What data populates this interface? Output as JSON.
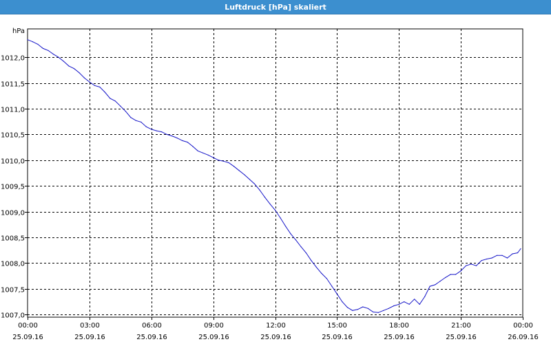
{
  "window": {
    "title": "Luftdruck [hPa] skaliert"
  },
  "colors": {
    "title_bar": "#3c8fcf",
    "line": "#1414c8",
    "grid": "#000000"
  },
  "chart_data": {
    "type": "line",
    "title": "Luftdruck [hPa] skaliert",
    "unit_label": "hPa",
    "xlabel": "",
    "ylabel": "",
    "grid": true,
    "xlim": [
      0,
      24
    ],
    "ylim": [
      1006.95,
      1012.55
    ],
    "y_ticks": [
      {
        "v": 1007.0,
        "label": "1007,0"
      },
      {
        "v": 1007.5,
        "label": "1007,5"
      },
      {
        "v": 1008.0,
        "label": "1008,0"
      },
      {
        "v": 1008.5,
        "label": "1008,5"
      },
      {
        "v": 1009.0,
        "label": "1009,0"
      },
      {
        "v": 1009.5,
        "label": "1009,5"
      },
      {
        "v": 1010.0,
        "label": "1010,0"
      },
      {
        "v": 1010.5,
        "label": "1010,5"
      },
      {
        "v": 1011.0,
        "label": "1011,0"
      },
      {
        "v": 1011.5,
        "label": "1011,5"
      },
      {
        "v": 1012.0,
        "label": "1012,0"
      }
    ],
    "x_ticks": [
      {
        "v": 0,
        "time": "00:00",
        "date": "25.09.16"
      },
      {
        "v": 3,
        "time": "03:00",
        "date": "25.09.16"
      },
      {
        "v": 6,
        "time": "06:00",
        "date": "25.09.16"
      },
      {
        "v": 9,
        "time": "09:00",
        "date": "25.09.16"
      },
      {
        "v": 12,
        "time": "12:00",
        "date": "25.09.16"
      },
      {
        "v": 15,
        "time": "15:00",
        "date": "25.09.16"
      },
      {
        "v": 18,
        "time": "18:00",
        "date": "25.09.16"
      },
      {
        "v": 21,
        "time": "21:00",
        "date": "25.09.16"
      },
      {
        "v": 24,
        "time": "00:00",
        "date": "26.09.16"
      }
    ],
    "series": [
      {
        "x": [
          0.0,
          0.25,
          0.5,
          0.75,
          1.0,
          1.25,
          1.5,
          1.75,
          2.0,
          2.25,
          2.5,
          2.75,
          3.0,
          3.25,
          3.5,
          3.75,
          4.0,
          4.25,
          4.5,
          4.75,
          5.0,
          5.25,
          5.5,
          5.75,
          6.0,
          6.25,
          6.5,
          6.75,
          7.0,
          7.25,
          7.5,
          7.75,
          8.0,
          8.25,
          8.5,
          8.75,
          9.0,
          9.25,
          9.5,
          9.75,
          10.0,
          10.25,
          10.5,
          10.75,
          11.0,
          11.25,
          11.5,
          11.75,
          12.0,
          12.25,
          12.5,
          12.75,
          13.0,
          13.25,
          13.5,
          13.75,
          14.0,
          14.25,
          14.5,
          14.75,
          15.0,
          15.25,
          15.5,
          15.75,
          16.0,
          16.25,
          16.5,
          16.75,
          17.0,
          17.25,
          17.5,
          17.75,
          18.0,
          18.25,
          18.5,
          18.75,
          19.0,
          19.25,
          19.5,
          19.75,
          20.0,
          20.25,
          20.5,
          20.75,
          21.0,
          21.25,
          21.5,
          21.75,
          22.0,
          22.25,
          22.5,
          22.75,
          23.0,
          23.25,
          23.5,
          23.75,
          23.9
        ],
        "values": [
          1012.34,
          1012.3,
          1012.25,
          1012.17,
          1012.13,
          1012.06,
          1012.0,
          1011.92,
          1011.83,
          1011.78,
          1011.7,
          1011.6,
          1011.52,
          1011.45,
          1011.42,
          1011.32,
          1011.2,
          1011.15,
          1011.05,
          1010.95,
          1010.83,
          1010.77,
          1010.74,
          1010.65,
          1010.6,
          1010.57,
          1010.55,
          1010.5,
          1010.47,
          1010.43,
          1010.38,
          1010.35,
          1010.27,
          1010.18,
          1010.14,
          1010.1,
          1010.05,
          1010.0,
          1009.98,
          1009.95,
          1009.88,
          1009.8,
          1009.72,
          1009.63,
          1009.54,
          1009.42,
          1009.28,
          1009.15,
          1009.03,
          1008.88,
          1008.72,
          1008.57,
          1008.45,
          1008.32,
          1008.2,
          1008.05,
          1007.92,
          1007.8,
          1007.7,
          1007.55,
          1007.4,
          1007.25,
          1007.14,
          1007.08,
          1007.1,
          1007.15,
          1007.12,
          1007.05,
          1007.04,
          1007.08,
          1007.12,
          1007.17,
          1007.2,
          1007.25,
          1007.2,
          1007.3,
          1007.2,
          1007.35,
          1007.55,
          1007.58,
          1007.65,
          1007.72,
          1007.78,
          1007.78,
          1007.85,
          1007.95,
          1007.98,
          1007.95,
          1008.05,
          1008.08,
          1008.1,
          1008.15,
          1008.15,
          1008.1,
          1008.18,
          1008.2,
          1008.28
        ]
      }
    ]
  }
}
